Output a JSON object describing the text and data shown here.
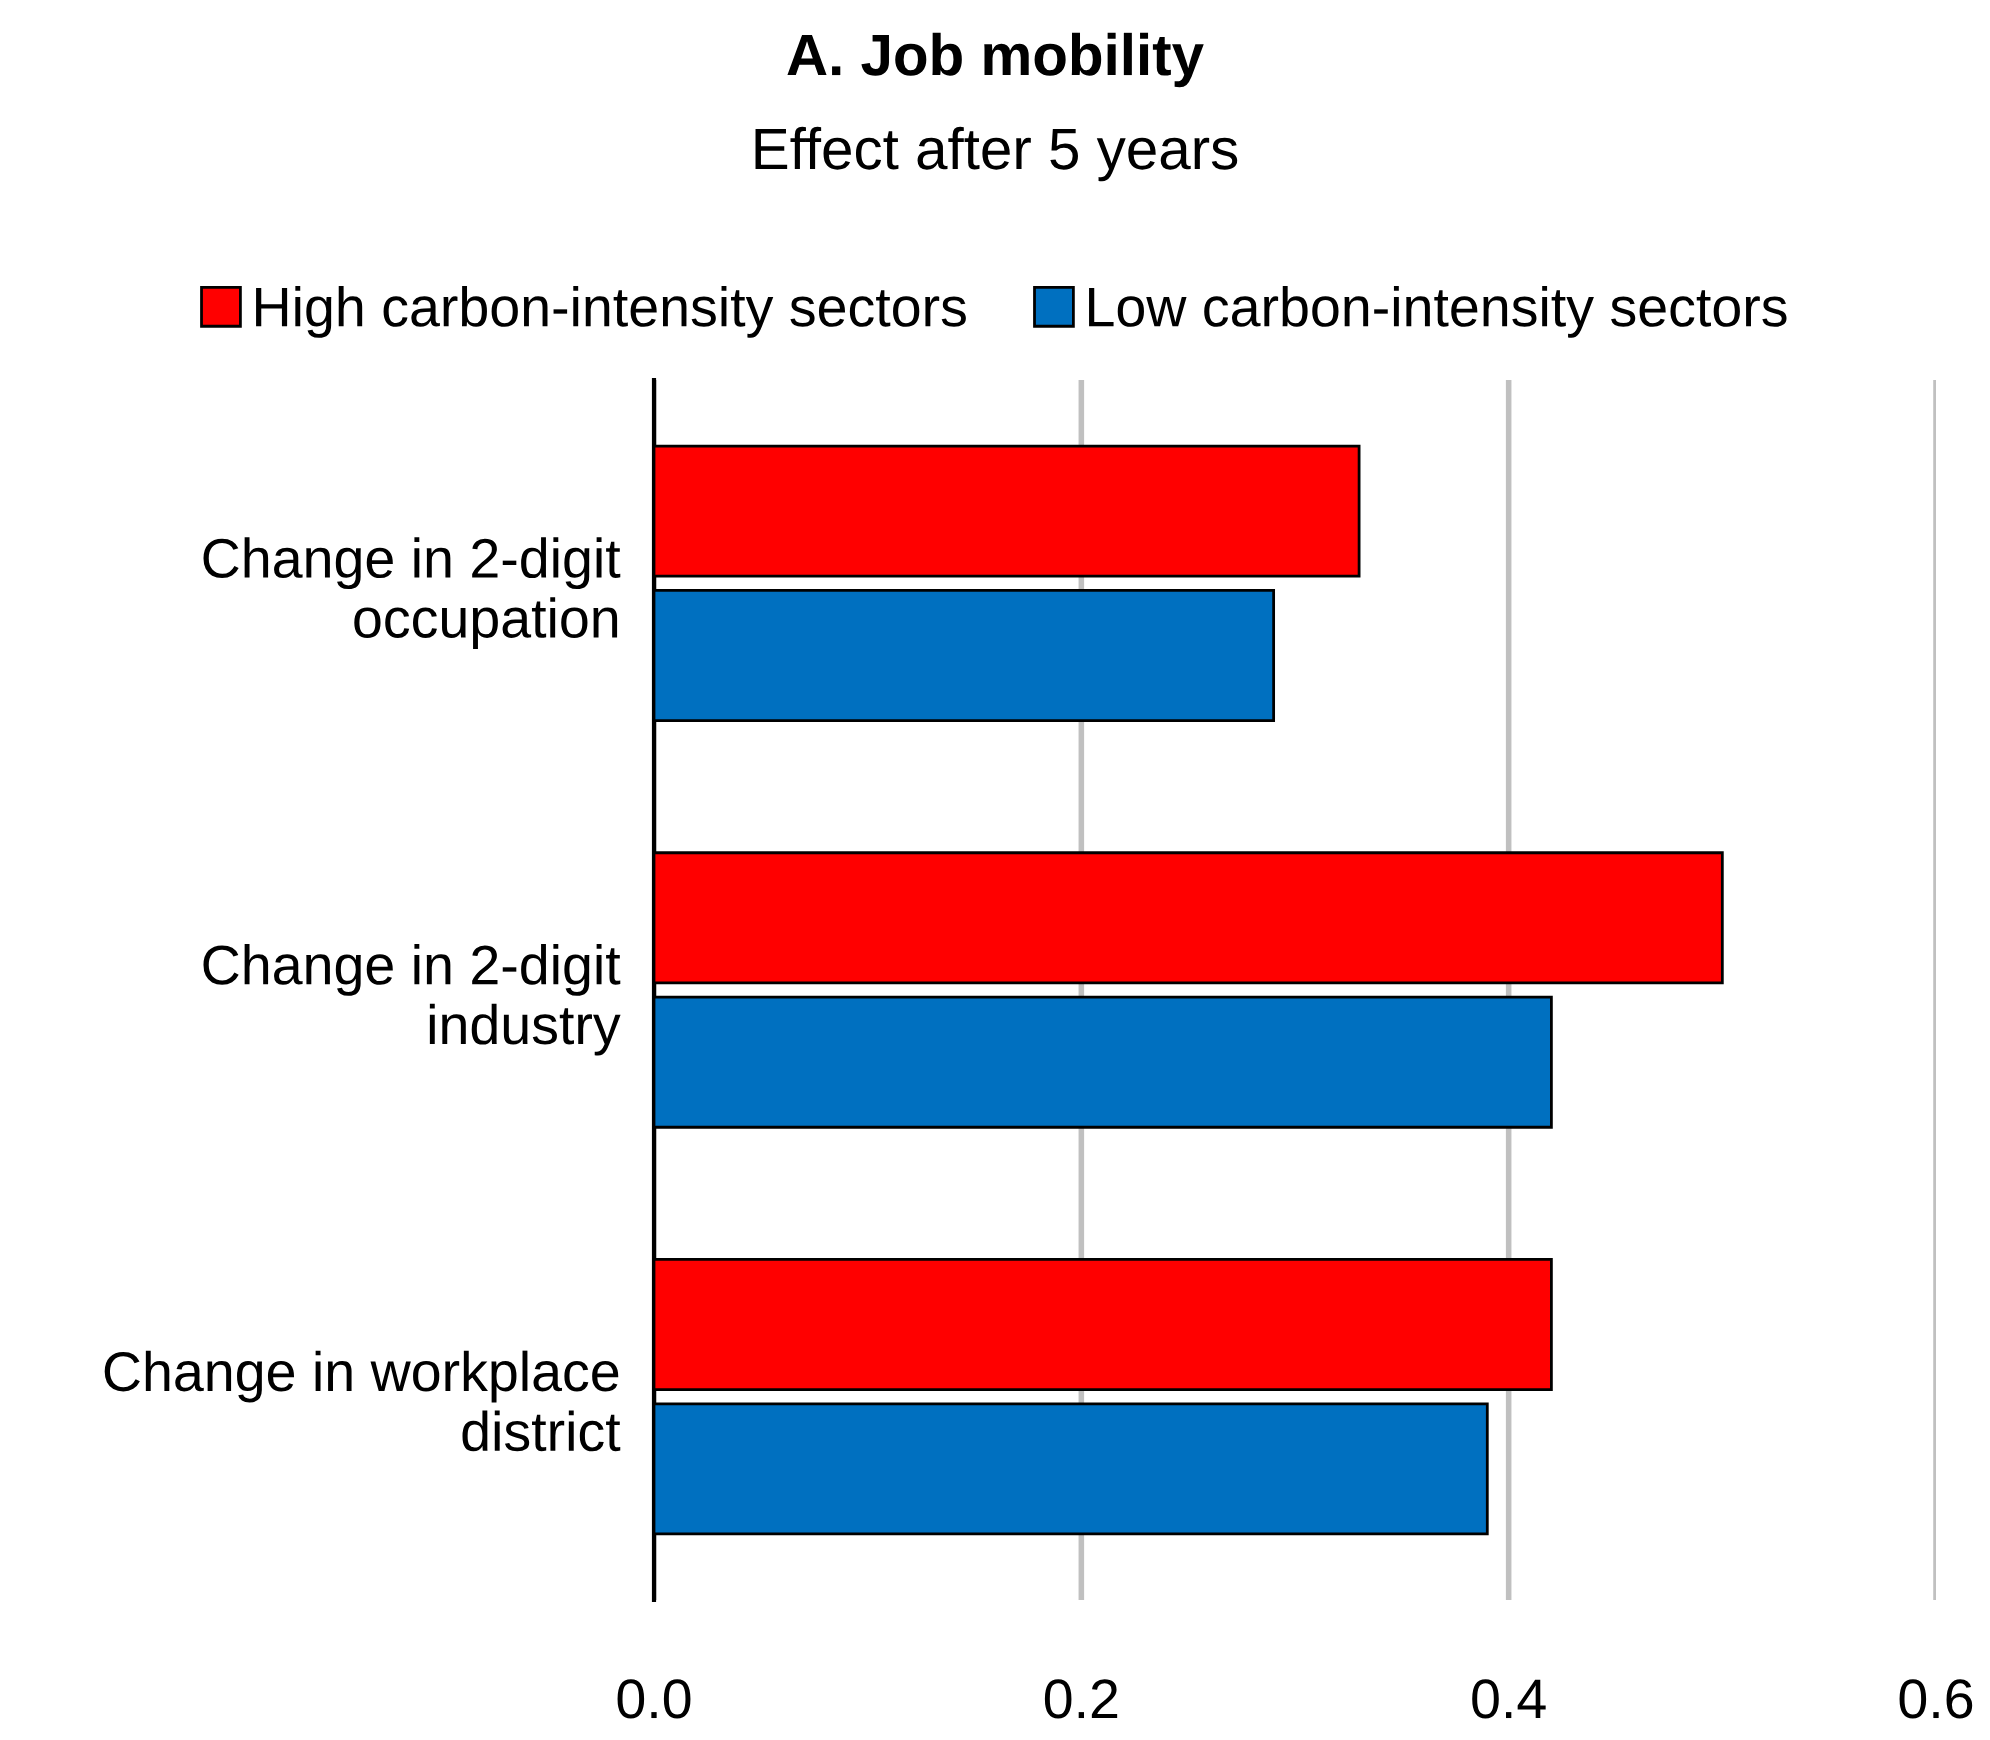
{
  "chart_data": {
    "type": "bar",
    "orientation": "horizontal",
    "title": "A. Job mobility",
    "subtitle": "Effect after 5 years",
    "categories": [
      "Change in 2-digit\noccupation",
      "Change in 2-digit\nindustry",
      "Change in workplace\ndistrict"
    ],
    "series": [
      {
        "name": "High carbon-intensity sectors",
        "color": "#ff0000",
        "values": [
          0.33,
          0.5,
          0.42
        ]
      },
      {
        "name": "Low carbon-intensity sectors",
        "color": "#0070c0",
        "values": [
          0.29,
          0.42,
          0.39
        ]
      }
    ],
    "xlim": [
      0,
      0.6
    ],
    "xticks": [
      {
        "value": 0,
        "label": "0.0"
      },
      {
        "value": 0.2,
        "label": "0.2"
      },
      {
        "value": 0.4,
        "label": "0.4"
      },
      {
        "value": 0.6,
        "label": "0.6"
      }
    ],
    "grid": "x",
    "legend": "top"
  }
}
